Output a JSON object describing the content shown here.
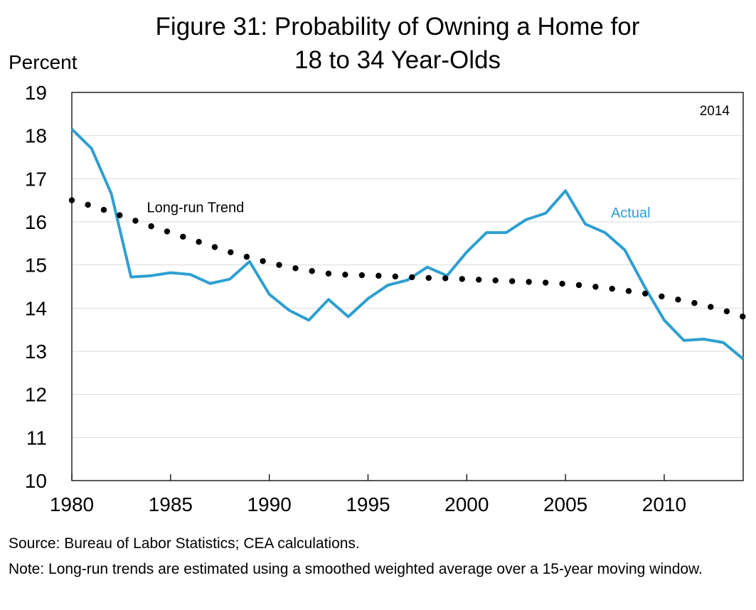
{
  "chart_data": {
    "type": "line",
    "title_line1": "Figure 31: Probability of Owning a Home for",
    "title_line2": "18 to 34 Year-Olds",
    "ylabel": "Percent",
    "xlabel": "",
    "year_tag": "2014",
    "ylim": [
      10,
      19
    ],
    "xlim": [
      1980,
      2014
    ],
    "y_ticks": [
      10,
      11,
      12,
      13,
      14,
      15,
      16,
      17,
      18,
      19
    ],
    "x_ticks": [
      1980,
      1985,
      1990,
      1995,
      2000,
      2005,
      2010
    ],
    "grid": "horizontal",
    "x": [
      1980,
      1981,
      1982,
      1983,
      1984,
      1985,
      1986,
      1987,
      1988,
      1989,
      1990,
      1991,
      1992,
      1993,
      1994,
      1995,
      1996,
      1997,
      1998,
      1999,
      2000,
      2001,
      2002,
      2003,
      2004,
      2005,
      2006,
      2007,
      2008,
      2009,
      2010,
      2011,
      2012,
      2013,
      2014
    ],
    "series": [
      {
        "name": "Actual",
        "color": "#2e9fd0",
        "style": "solid",
        "label_at": [
          2007.3,
          16.1
        ],
        "values": [
          18.15,
          17.7,
          16.65,
          14.72,
          14.75,
          14.82,
          14.78,
          14.57,
          14.67,
          15.08,
          14.32,
          13.95,
          13.72,
          14.2,
          13.8,
          14.22,
          14.53,
          14.65,
          14.95,
          14.75,
          15.3,
          15.75,
          15.75,
          16.05,
          16.2,
          16.72,
          15.95,
          15.75,
          15.35,
          14.5,
          13.72,
          13.25,
          13.28,
          13.2,
          12.82
        ]
      },
      {
        "name": "Long-run Trend",
        "color": "#000000",
        "style": "dotted",
        "label_at": [
          1983.8,
          16.22
        ],
        "values": [
          16.5,
          16.37,
          16.22,
          16.06,
          15.9,
          15.75,
          15.6,
          15.45,
          15.3,
          15.17,
          15.05,
          14.95,
          14.87,
          14.8,
          14.77,
          14.76,
          14.74,
          14.72,
          14.7,
          14.69,
          14.67,
          14.65,
          14.63,
          14.61,
          14.59,
          14.56,
          14.52,
          14.47,
          14.41,
          14.34,
          14.26,
          14.17,
          14.07,
          13.95,
          13.8
        ]
      }
    ]
  },
  "footer": {
    "source": "Source: Bureau of Labor Statistics; CEA calculations.",
    "note": "Note: Long-run trends are estimated using a smoothed weighted average over a 15-year moving window."
  }
}
